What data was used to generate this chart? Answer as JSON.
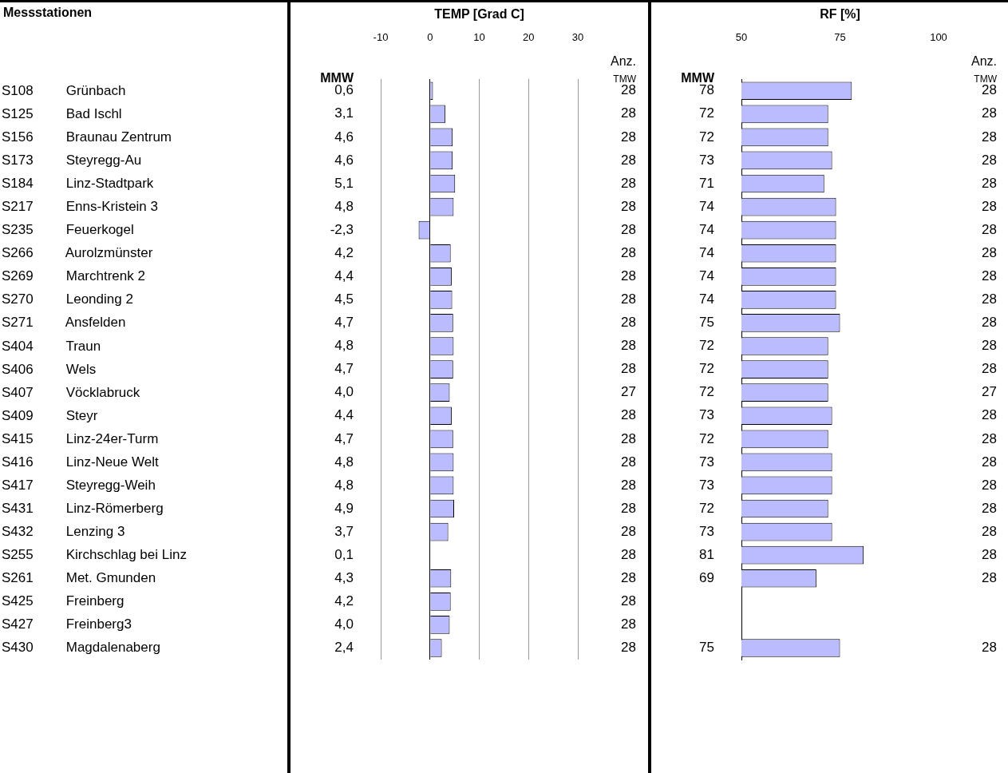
{
  "chart_data": [
    {
      "type": "bar",
      "orientation": "horizontal",
      "title": "TEMP [Grad C]",
      "color": "#bbbbff",
      "categories": [
        "S108 Grünbach",
        "S125 Bad Ischl",
        "S156 Braunau Zentrum",
        "S173 Steyregg-Au",
        "S184 Linz-Stadtpark",
        "S217 Enns-Kristein 3",
        "S235 Feuerkogel",
        "S266 Aurolzmünster",
        "S269 Marchtrenk 2",
        "S270 Leonding 2",
        "S271 Ansfelden",
        "S404 Traun",
        "S406 Wels",
        "S407 Vöcklabruck",
        "S409 Steyr",
        "S415 Linz-24er-Turm",
        "S416 Linz-Neue Welt",
        "S417 Steyregg-Weih",
        "S431 Linz-Römerberg",
        "S432 Lenzing 3",
        "S255 Kirchschlag bei Linz",
        "S261 Met. Gmunden",
        "S425 Freinberg",
        "S427 Freinberg3",
        "S430 Magdalenaberg"
      ],
      "values": [
        0.6,
        3.1,
        4.6,
        4.6,
        5.1,
        4.8,
        -2.3,
        4.2,
        4.4,
        4.5,
        4.7,
        4.8,
        4.7,
        4.0,
        4.4,
        4.7,
        4.8,
        4.8,
        4.9,
        3.7,
        0.1,
        4.3,
        4.2,
        4.0,
        2.4
      ],
      "value_labels": [
        "0,6",
        "3,1",
        "4,6",
        "4,6",
        "5,1",
        "4,8",
        "-2,3",
        "4,2",
        "4,4",
        "4,5",
        "4,7",
        "4,8",
        "4,7",
        "4,0",
        "4,4",
        "4,7",
        "4,8",
        "4,8",
        "4,9",
        "3,7",
        "0,1",
        "4,3",
        "4,2",
        "4,0",
        "2,4"
      ],
      "xlim": [
        -10,
        30
      ],
      "xticks": [
        -10,
        0,
        10,
        20,
        30
      ],
      "grid": "x",
      "annotations": [
        "Messstationen",
        "MMW",
        "Anz. TMW",
        "28",
        "28",
        "28",
        "28",
        "28",
        "28",
        "28",
        "28",
        "28",
        "28",
        "28",
        "28",
        "28",
        "27",
        "28",
        "28",
        "28",
        "28",
        "28",
        "28",
        "28",
        "28",
        "28",
        "28",
        "28"
      ]
    },
    {
      "type": "bar",
      "orientation": "horizontal",
      "title": "RF [%]",
      "color": "#bbbbff",
      "tick_labels": "x",
      "categories": [
        null,
        null,
        null,
        null,
        null,
        null,
        null,
        null,
        null,
        null,
        null,
        null,
        null,
        null,
        null,
        null,
        null,
        null,
        null,
        null,
        null,
        null,
        null,
        null,
        null
      ],
      "values": [
        78,
        72,
        72,
        73,
        71,
        74,
        74,
        74,
        74,
        74,
        75,
        72,
        72,
        72,
        73,
        72,
        73,
        73,
        72,
        73,
        81,
        69,
        null,
        null,
        75
      ],
      "value_labels": [
        "78",
        "72",
        "72",
        "73",
        "71",
        "74",
        "74",
        "74",
        "74",
        "74",
        "75",
        "72",
        "72",
        "72",
        "73",
        "72",
        "73",
        "73",
        "72",
        "73",
        "81",
        "69",
        null,
        null,
        "75"
      ],
      "xlim": [
        50,
        100
      ],
      "xticks": [
        50,
        75,
        100
      ],
      "annotations": [
        "MMW",
        "Anz. TMW",
        "28",
        "28",
        "28",
        "28",
        "28",
        "28",
        "28",
        "28",
        "28",
        "28",
        "28",
        "28",
        "28",
        "27",
        "28",
        "28",
        "28",
        "28",
        "28",
        "28",
        "28",
        "28",
        "28"
      ]
    }
  ]
}
